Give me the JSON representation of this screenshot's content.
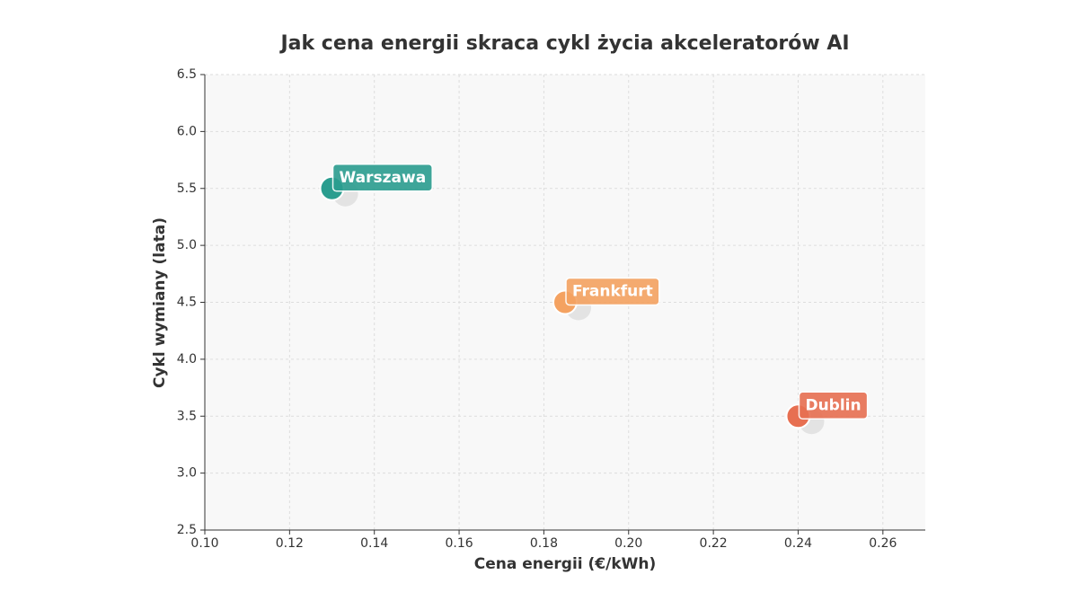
{
  "chart_data": {
    "type": "scatter",
    "title": "Jak cena energii skraca cykl życia akceleratorów AI",
    "xlabel": "Cena energii (€/kWh)",
    "ylabel": "Cykl wymiany (lata)",
    "x": [
      0.13,
      0.185,
      0.24
    ],
    "values": [
      5.5,
      4.5,
      3.5
    ],
    "labels": [
      "Warszawa",
      "Frankfurt",
      "Dublin"
    ],
    "colors": [
      "#2a9d8f",
      "#f4a261",
      "#e76f51"
    ],
    "xlim": [
      0.1,
      0.27
    ],
    "xticks": [
      {
        "value": 0.1,
        "label": "0.10"
      },
      0.12,
      0.14,
      0.16,
      0.18,
      {
        "value": 0.2,
        "label": "0.20"
      },
      0.22,
      0.24,
      0.26
    ],
    "ylim": [
      2.5,
      6.5
    ],
    "yticks": [
      2.5,
      {
        "value": 3,
        "label": "3.0"
      },
      3.5,
      {
        "value": 4,
        "label": "4.0"
      },
      4.5,
      {
        "value": 5,
        "label": "5.0"
      },
      5.5,
      {
        "value": 6,
        "label": "6.0"
      },
      6.5
    ],
    "grid": true
  }
}
